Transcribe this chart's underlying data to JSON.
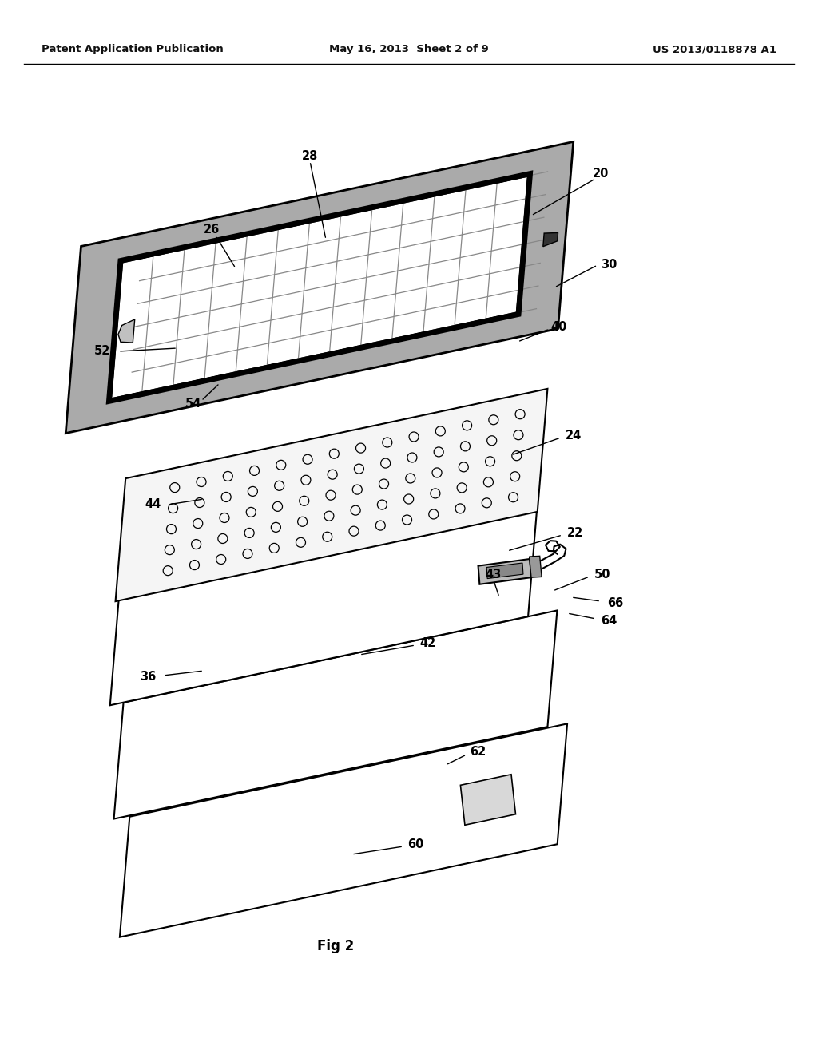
{
  "header_left": "Patent Application Publication",
  "header_center": "May 16, 2013  Sheet 2 of 9",
  "header_right": "US 2013/0118878 A1",
  "fig_label": "Fig 2",
  "bg_color": "#ffffff",
  "lc": "#000000",
  "gray_fill": "#aaaaaa",
  "dark_gray": "#666666",
  "light_fill": "#f2f2f2",
  "skew": 0.32,
  "rotation_deg": -15
}
